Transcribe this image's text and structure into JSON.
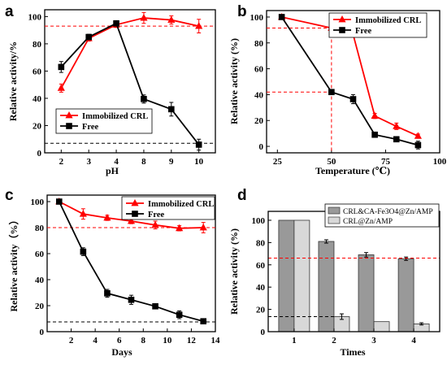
{
  "chart_data": [
    {
      "panel": "a",
      "type": "line",
      "categories": [
        "2",
        "3",
        "4",
        "8",
        "9",
        "10"
      ],
      "xlabel": "pH",
      "ylabel": "Relative activity/%",
      "ylim": [
        0,
        105
      ],
      "yticks": [
        "0",
        "20",
        "40",
        "60",
        "80",
        "100"
      ],
      "legend_position": "bottom-left",
      "series": [
        {
          "name": "Immobilized CRL",
          "color": "#ff0000",
          "marker": "triangle",
          "values": [
            47.5,
            84,
            94,
            99,
            97.5,
            93
          ],
          "errors": [
            3,
            2,
            2,
            4,
            3,
            5
          ]
        },
        {
          "name": "Free",
          "color": "#000000",
          "marker": "square",
          "values": [
            63,
            85,
            95,
            39.5,
            32,
            6
          ],
          "errors": [
            4,
            2,
            2,
            3,
            5,
            4
          ]
        }
      ],
      "reference_lines": [
        {
          "y": 93,
          "color": "#ff0000"
        },
        {
          "y": 7,
          "color": "#000000"
        }
      ]
    },
    {
      "panel": "b",
      "type": "line",
      "xlabel": "Temperature (℃)",
      "ylabel": "Relative activity (%)",
      "xlim": [
        20,
        100
      ],
      "xticks": [
        "25",
        "50",
        "75",
        "100"
      ],
      "ylim": [
        -5,
        105
      ],
      "yticks": [
        "0",
        "20",
        "40",
        "60",
        "80",
        "100"
      ],
      "legend_position": "top-right",
      "series": [
        {
          "name": "Immobilized CRL",
          "color": "#ff0000",
          "marker": "triangle",
          "x": [
            27,
            50,
            60,
            70,
            80,
            90
          ],
          "values": [
            100,
            91.5,
            86.5,
            23.5,
            15.5,
            8
          ],
          "errors": [
            1,
            1.5,
            1,
            2,
            2.5,
            1.5
          ]
        },
        {
          "name": "Free",
          "color": "#000000",
          "marker": "square",
          "x": [
            27,
            50,
            60,
            70,
            80,
            90
          ],
          "values": [
            100,
            42,
            36.5,
            9,
            5.5,
            1
          ],
          "errors": [
            1,
            2,
            3.5,
            2,
            1.5,
            3
          ]
        }
      ],
      "reference_lines": [
        {
          "y": 91.5,
          "x": 50,
          "color": "#ff0000"
        },
        {
          "y": 42,
          "x": 50,
          "color": "#ff0000"
        }
      ]
    },
    {
      "panel": "c",
      "type": "line",
      "xlabel": "Days",
      "ylabel": "Relative activity（%）",
      "xlim": [
        0,
        14
      ],
      "xticks": [
        "2",
        "4",
        "6",
        "8",
        "10",
        "12",
        "14"
      ],
      "ylim": [
        0,
        105
      ],
      "yticks": [
        "0",
        "20",
        "40",
        "60",
        "80",
        "100"
      ],
      "legend_position": "top-right",
      "series": [
        {
          "name": "Immobilized CRL",
          "color": "#ff0000",
          "marker": "triangle",
          "x": [
            1,
            3,
            5,
            7,
            9,
            11,
            13
          ],
          "values": [
            100,
            90.5,
            87.5,
            85,
            82,
            79.5,
            80
          ],
          "errors": [
            1.5,
            4,
            2,
            2,
            3,
            2,
            4
          ]
        },
        {
          "name": "Free",
          "color": "#000000",
          "marker": "square",
          "x": [
            1,
            3,
            5,
            7,
            9,
            11,
            13
          ],
          "values": [
            100,
            61.5,
            29.5,
            24.5,
            19.5,
            13,
            8
          ],
          "errors": [
            1.5,
            3,
            3,
            3.5,
            1,
            3,
            2
          ]
        }
      ],
      "reference_lines": [
        {
          "y": 80,
          "color": "#ff0000"
        },
        {
          "y": 7.5,
          "color": "#000000"
        }
      ]
    },
    {
      "panel": "d",
      "type": "bar",
      "categories": [
        "1",
        "2",
        "3",
        "4"
      ],
      "xlabel": "Times",
      "ylabel": "Relative activity (%)",
      "ylim": [
        0,
        108
      ],
      "yticks": [
        "0",
        "20",
        "40",
        "60",
        "80",
        "100"
      ],
      "legend_position": "top-right",
      "series": [
        {
          "name": "CRL&CA-Fe3O4@Zn/AMP",
          "color": "#999999",
          "values": [
            100,
            81,
            69,
            65.5
          ],
          "errors": [
            0,
            1.5,
            2,
            1.5
          ]
        },
        {
          "name": "CRL@Zn/AMP",
          "color": "#d8d8d8",
          "values": [
            100,
            13.5,
            9,
            7
          ],
          "errors": [
            0,
            2.5,
            0,
            1
          ]
        }
      ],
      "reference_lines": [
        {
          "y": 66,
          "color": "#ff0000"
        },
        {
          "y": 13.5,
          "color": "#000000"
        }
      ]
    }
  ],
  "panel_labels": [
    "a",
    "b",
    "c",
    "d"
  ]
}
